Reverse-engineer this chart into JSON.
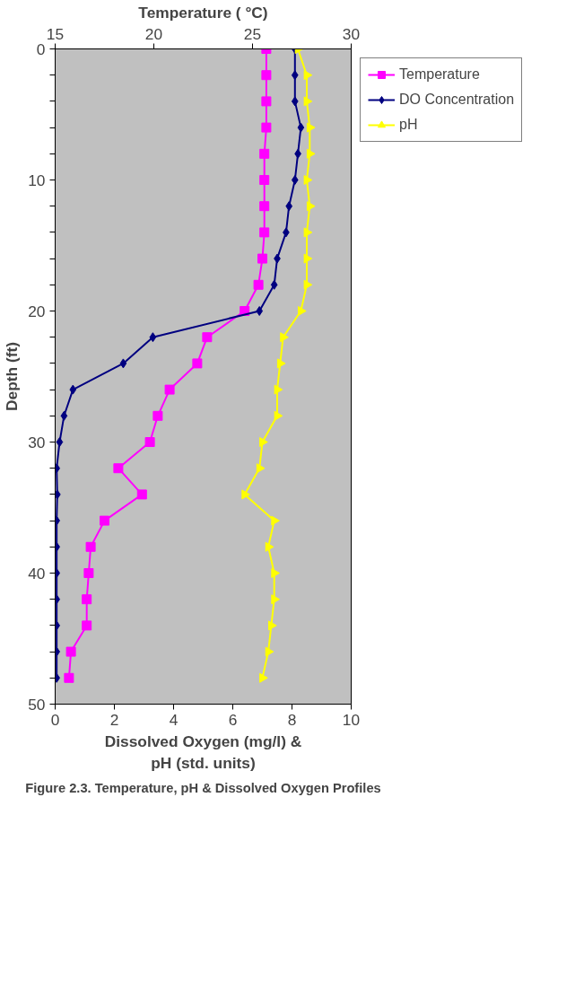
{
  "chart_data": {
    "type": "line",
    "x2label": "Temperature ( °C)",
    "xlabel": "Dissolved Oxygen (mg/l) &\npH (std. units)",
    "ylabel": "Depth (ft)",
    "annotations": [
      "Figure 2.3. Temperature, pH & Dissolved Oxygen Profiles"
    ],
    "xlim": [
      0,
      10
    ],
    "xticks": [
      0,
      2,
      4,
      6,
      8,
      10
    ],
    "x2lim": [
      15,
      30
    ],
    "x2ticks": [
      15,
      20,
      25,
      30
    ],
    "ylim": [
      50,
      0
    ],
    "yticks": [
      0,
      {
        "value": 2,
        "label": null
      },
      {
        "value": 4,
        "label": null
      },
      {
        "value": 6,
        "label": null
      },
      {
        "value": 8,
        "label": null
      },
      10,
      {
        "value": 12,
        "label": null
      },
      {
        "value": 14,
        "label": null
      },
      {
        "value": 16,
        "label": null
      },
      {
        "value": 18,
        "label": null
      },
      20,
      {
        "value": 22,
        "label": null
      },
      {
        "value": 24,
        "label": null
      },
      {
        "value": 26,
        "label": null
      },
      {
        "value": 28,
        "label": null
      },
      30,
      {
        "value": 32,
        "label": null
      },
      {
        "value": 34,
        "label": null
      },
      {
        "value": 36,
        "label": null
      },
      {
        "value": 38,
        "label": null
      },
      40,
      {
        "value": 42,
        "label": null
      },
      {
        "value": 44,
        "label": null
      },
      {
        "value": 46,
        "label": null
      },
      {
        "value": 48,
        "label": null
      },
      50
    ],
    "grid": false,
    "legend": "right",
    "series": [
      {
        "name": "Temperature",
        "color": "#ff00ff",
        "marker": "square",
        "axis": "x2",
        "x": [
          25.7,
          25.7,
          25.7,
          25.7,
          25.6,
          25.6,
          25.6,
          25.6,
          25.5,
          25.3,
          24.6,
          22.7,
          22.2,
          20.8,
          20.2,
          19.8,
          18.2,
          19.4,
          17.5,
          16.8,
          16.7,
          16.6,
          16.6,
          15.8,
          15.7
        ],
        "values": [
          0,
          2,
          4,
          6,
          8,
          10,
          12,
          14,
          16,
          18,
          20,
          22,
          24,
          26,
          28,
          30,
          32,
          34,
          36,
          38,
          40,
          42,
          44,
          46,
          48
        ]
      },
      {
        "name": "DO Concentration",
        "color": "#000080",
        "marker": "diamond",
        "x": [
          8.1,
          8.1,
          8.1,
          8.3,
          8.2,
          8.1,
          7.9,
          7.8,
          7.5,
          7.4,
          6.9,
          3.3,
          2.3,
          0.6,
          0.3,
          0.15,
          0.05,
          0.07,
          0.05,
          0.05,
          0.05,
          0.05,
          0.05,
          0.05,
          0.05
        ],
        "values": [
          0,
          2,
          4,
          6,
          8,
          10,
          12,
          14,
          16,
          18,
          20,
          22,
          24,
          26,
          28,
          30,
          32,
          34,
          36,
          38,
          40,
          42,
          44,
          46,
          48
        ]
      },
      {
        "name": "pH",
        "color": "#ffff00",
        "marker": "triangle",
        "x": [
          8.2,
          8.5,
          8.5,
          8.6,
          8.6,
          8.5,
          8.6,
          8.5,
          8.5,
          8.5,
          8.3,
          7.7,
          7.6,
          7.5,
          7.5,
          7.0,
          6.9,
          6.4,
          7.4,
          7.2,
          7.4,
          7.4,
          7.3,
          7.2,
          7.0
        ],
        "values": [
          0,
          2,
          4,
          6,
          8,
          10,
          12,
          14,
          16,
          18,
          20,
          22,
          24,
          26,
          28,
          30,
          32,
          34,
          36,
          38,
          40,
          42,
          44,
          46,
          48
        ]
      }
    ]
  }
}
